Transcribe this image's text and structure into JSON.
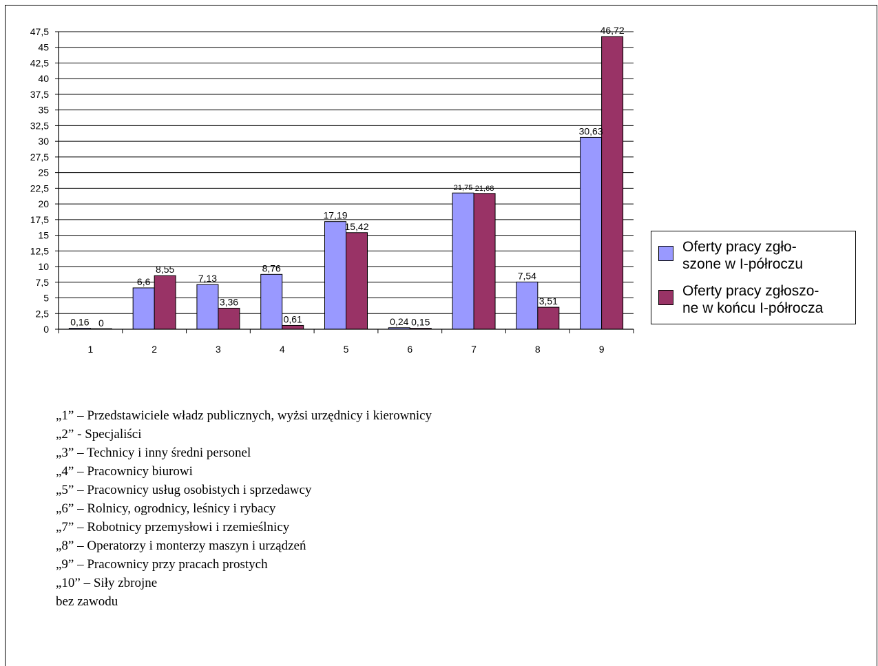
{
  "chart_data": {
    "type": "bar",
    "categories": [
      "1",
      "2",
      "3",
      "4",
      "5",
      "6",
      "7",
      "8",
      "9"
    ],
    "series": [
      {
        "name": "Oferty pracy zgło-\nszone w I-półroczu",
        "values": [
          0.16,
          6.6,
          7.13,
          8.76,
          17.19,
          0.24,
          21.75,
          7.54,
          30.63
        ],
        "labels": [
          "0,16",
          "6,6",
          "7,13",
          "8,76",
          "17,19",
          "0,24",
          "21,75",
          "7,54",
          "30,63"
        ],
        "color": "#9999ff"
      },
      {
        "name": "Oferty pracy zgłoszo-\nne w końcu I-półrocza",
        "values": [
          0,
          8.55,
          3.36,
          0.61,
          15.42,
          0.15,
          21.68,
          3.51,
          46.72
        ],
        "labels": [
          "0",
          "8,55",
          "3,36",
          "0,61",
          "15,42",
          "0,15",
          "21,68",
          "3,51",
          "46,72"
        ],
        "color": "#993366"
      }
    ],
    "yticks": [
      "0",
      "2,5",
      "5",
      "7,5",
      "10",
      "12,5",
      "15",
      "17,5",
      "20",
      "22,5",
      "25",
      "27,5",
      "30",
      "32,5",
      "35",
      "37,5",
      "40",
      "42,5",
      "45",
      "47,5"
    ],
    "ylim": [
      0,
      47.5
    ],
    "grid": true,
    "legend_position": "right",
    "title": "",
    "xlabel": "",
    "ylabel": ""
  },
  "notes": [
    "„1” – Przedstawiciele władz publicznych, wyżsi urzędnicy i kierownicy",
    "„2” - Specjaliści",
    "„3” – Technicy i inny średni personel",
    "„4” – Pracownicy biurowi",
    "„5” – Pracownicy usług osobistych i sprzedawcy",
    "„6” – Rolnicy, ogrodnicy, leśnicy i rybacy",
    "„7” – Robotnicy przemysłowi i rzemieślnicy",
    "„8” – Operatorzy i monterzy maszyn i urządzeń",
    "„9” – Pracownicy przy pracach prostych",
    "„10” – Siły zbrojne",
    "bez zawodu"
  ]
}
